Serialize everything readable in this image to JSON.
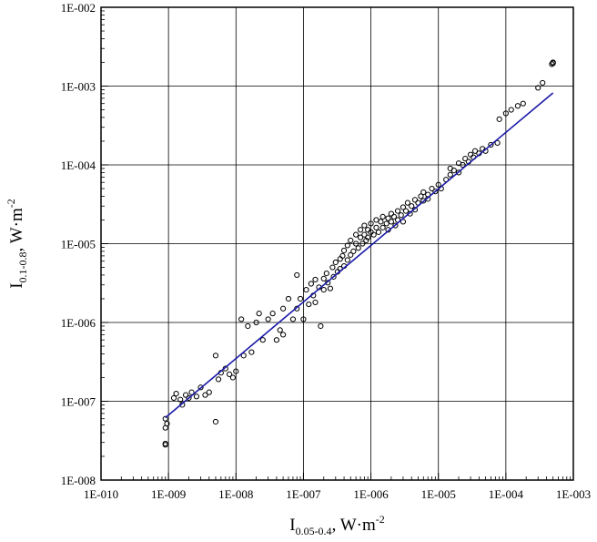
{
  "chart_data": {
    "type": "scatter",
    "title": "",
    "x_scale": "log",
    "y_scale": "log",
    "xlim": [
      1e-10,
      0.001
    ],
    "ylim": [
      1e-08,
      0.01
    ],
    "grid": true,
    "legend": "none",
    "xlabel": {
      "main": "I",
      "sub": "0.05-0.4",
      "unit": ", W·m",
      "sup": "-2"
    },
    "ylabel": {
      "main": "I",
      "sub": "0.1-0.8",
      "unit": ", W·m",
      "sup": "-2"
    },
    "x_tick_labels": [
      "1E-010",
      "1E-009",
      "1E-008",
      "1E-007",
      "1E-006",
      "1E-005",
      "1E-004",
      "1E-003"
    ],
    "y_tick_labels": [
      "1E-008",
      "1E-007",
      "1E-006",
      "1E-005",
      "1E-004",
      "1E-003",
      "1E-002"
    ],
    "fit_line": {
      "x": [
        9e-10,
        0.0005
      ],
      "y": [
        6.2e-08,
        0.00082
      ],
      "color": "#1a1aa8"
    },
    "point_color": "#000000",
    "points": [
      [
        9e-10,
        2.9e-08
      ],
      [
        9e-10,
        2.8e-08
      ],
      [
        9e-10,
        4.6e-08
      ],
      [
        9.5e-10,
        5.2e-08
      ],
      [
        9e-10,
        6e-08
      ],
      [
        1.2e-09,
        1.1e-07
      ],
      [
        1.3e-09,
        1.25e-07
      ],
      [
        1.5e-09,
        1.05e-07
      ],
      [
        1.8e-09,
        1.2e-07
      ],
      [
        2.2e-09,
        1.3e-07
      ],
      [
        2.6e-09,
        1.15e-07
      ],
      [
        3e-09,
        1.5e-07
      ],
      [
        3.5e-09,
        1.2e-07
      ],
      [
        4e-09,
        1.3e-07
      ],
      [
        1.6e-09,
        9e-08
      ],
      [
        2e-09,
        1.1e-07
      ],
      [
        5e-09,
        5.5e-08
      ],
      [
        5e-09,
        3.8e-07
      ],
      [
        5.5e-09,
        1.9e-07
      ],
      [
        6e-09,
        2.3e-07
      ],
      [
        7e-09,
        2.6e-07
      ],
      [
        8e-09,
        2.2e-07
      ],
      [
        9e-09,
        2e-07
      ],
      [
        1e-08,
        2.4e-07
      ],
      [
        1.2e-08,
        1.1e-06
      ],
      [
        1.3e-08,
        3.8e-07
      ],
      [
        1.5e-08,
        9e-07
      ],
      [
        1.7e-08,
        4.2e-07
      ],
      [
        2e-08,
        1e-06
      ],
      [
        2.2e-08,
        1.3e-06
      ],
      [
        2.5e-08,
        6e-07
      ],
      [
        3e-08,
        1.1e-06
      ],
      [
        3.5e-08,
        1.3e-06
      ],
      [
        4e-08,
        6e-07
      ],
      [
        4.5e-08,
        8e-07
      ],
      [
        5e-08,
        1.5e-06
      ],
      [
        5e-08,
        7e-07
      ],
      [
        6e-08,
        2e-06
      ],
      [
        7e-08,
        1.1e-06
      ],
      [
        8e-08,
        4e-06
      ],
      [
        8e-08,
        1.5e-06
      ],
      [
        9e-08,
        2e-06
      ],
      [
        1e-07,
        1.1e-06
      ],
      [
        1.1e-07,
        2.6e-06
      ],
      [
        1.2e-07,
        1.7e-06
      ],
      [
        1.3e-07,
        3.1e-06
      ],
      [
        1.4e-07,
        2.2e-06
      ],
      [
        1.5e-07,
        3.5e-06
      ],
      [
        1.5e-07,
        1.8e-06
      ],
      [
        1.7e-07,
        2.8e-06
      ],
      [
        1.8e-07,
        9e-07
      ],
      [
        2e-07,
        3.6e-06
      ],
      [
        2e-07,
        2.6e-06
      ],
      [
        2.2e-07,
        4.2e-06
      ],
      [
        2.3e-07,
        3.2e-06
      ],
      [
        2.5e-07,
        2.7e-06
      ],
      [
        2.7e-07,
        5e-06
      ],
      [
        2.8e-07,
        3.8e-06
      ],
      [
        3e-07,
        5.8e-06
      ],
      [
        3.2e-07,
        4.4e-06
      ],
      [
        3.5e-07,
        6.4e-06
      ],
      [
        3.5e-07,
        4.8e-06
      ],
      [
        3.8e-07,
        7e-06
      ],
      [
        4e-07,
        5.2e-06
      ],
      [
        4e-07,
        8.2e-06
      ],
      [
        4.5e-07,
        6.2e-06
      ],
      [
        4.5e-07,
        9.5e-06
      ],
      [
        5e-07,
        7.2e-06
      ],
      [
        5e-07,
        1.1e-05
      ],
      [
        5.5e-07,
        8e-06
      ],
      [
        6e-07,
        1e-05
      ],
      [
        6e-07,
        1.3e-05
      ],
      [
        6.5e-07,
        8.8e-06
      ],
      [
        7e-07,
        1.2e-05
      ],
      [
        7e-07,
        1.5e-05
      ],
      [
        7.5e-07,
        1e-05
      ],
      [
        8e-07,
        1.3e-05
      ],
      [
        8e-07,
        1.7e-05
      ],
      [
        8.5e-07,
        1.1e-05
      ],
      [
        9e-07,
        1.5e-05
      ],
      [
        9e-07,
        1.2e-05
      ],
      [
        1e-06,
        1.4e-05
      ],
      [
        1e-06,
        1.8e-05
      ],
      [
        1.1e-06,
        1.3e-05
      ],
      [
        1.2e-06,
        1.6e-05
      ],
      [
        1.2e-06,
        2e-05
      ],
      [
        1.3e-06,
        1.4e-05
      ],
      [
        1.4e-06,
        1.9e-05
      ],
      [
        1.5e-06,
        1.6e-05
      ],
      [
        1.5e-06,
        2.2e-05
      ],
      [
        1.7e-06,
        1.8e-05
      ],
      [
        1.8e-06,
        2.1e-05
      ],
      [
        1.8e-06,
        1.5e-05
      ],
      [
        2e-06,
        2.4e-05
      ],
      [
        2e-06,
        1.9e-05
      ],
      [
        2.2e-06,
        2.2e-05
      ],
      [
        2.3e-06,
        1.7e-05
      ],
      [
        2.5e-06,
        2.6e-05
      ],
      [
        2.5e-06,
        2e-05
      ],
      [
        2.8e-06,
        2.3e-05
      ],
      [
        3e-06,
        2.9e-05
      ],
      [
        3e-06,
        1.9e-05
      ],
      [
        3.3e-06,
        2.6e-05
      ],
      [
        3.5e-06,
        3.3e-05
      ],
      [
        3.8e-06,
        2.4e-05
      ],
      [
        4e-06,
        3e-05
      ],
      [
        4.5e-06,
        3.6e-05
      ],
      [
        4.5e-06,
        2.7e-05
      ],
      [
        5e-06,
        3.3e-05
      ],
      [
        5.5e-06,
        4e-05
      ],
      [
        6e-06,
        3.5e-05
      ],
      [
        6e-06,
        4.5e-05
      ],
      [
        7e-06,
        4.2e-05
      ],
      [
        7e-06,
        3.7e-05
      ],
      [
        8e-06,
        5e-05
      ],
      [
        9e-06,
        4.6e-05
      ],
      [
        1e-05,
        5.6e-05
      ],
      [
        1.1e-05,
        5e-05
      ],
      [
        1.3e-05,
        6.5e-05
      ],
      [
        1.5e-05,
        7.5e-05
      ],
      [
        1.5e-05,
        9e-05
      ],
      [
        1.7e-05,
        8.5e-05
      ],
      [
        2e-05,
        0.000105
      ],
      [
        2e-05,
        8e-05
      ],
      [
        2.3e-05,
        0.0001
      ],
      [
        2.5e-05,
        0.00012
      ],
      [
        2.8e-05,
        0.00011
      ],
      [
        3e-05,
        0.000135
      ],
      [
        3.3e-05,
        0.000125
      ],
      [
        3.5e-05,
        0.00015
      ],
      [
        4e-05,
        0.00014
      ],
      [
        4.5e-05,
        0.00016
      ],
      [
        5e-05,
        0.00015
      ],
      [
        6e-05,
        0.00018
      ],
      [
        7.5e-05,
        0.00019
      ],
      [
        8e-05,
        0.00038
      ],
      [
        0.0001,
        0.00045
      ],
      [
        0.00012,
        0.0005
      ],
      [
        0.00015,
        0.00056
      ],
      [
        0.00018,
        0.0006
      ],
      [
        0.0003,
        0.00095
      ],
      [
        0.00035,
        0.0011
      ],
      [
        0.00048,
        0.0019
      ],
      [
        0.0005,
        0.002
      ],
      [
        0.0005,
        0.00195
      ]
    ]
  }
}
